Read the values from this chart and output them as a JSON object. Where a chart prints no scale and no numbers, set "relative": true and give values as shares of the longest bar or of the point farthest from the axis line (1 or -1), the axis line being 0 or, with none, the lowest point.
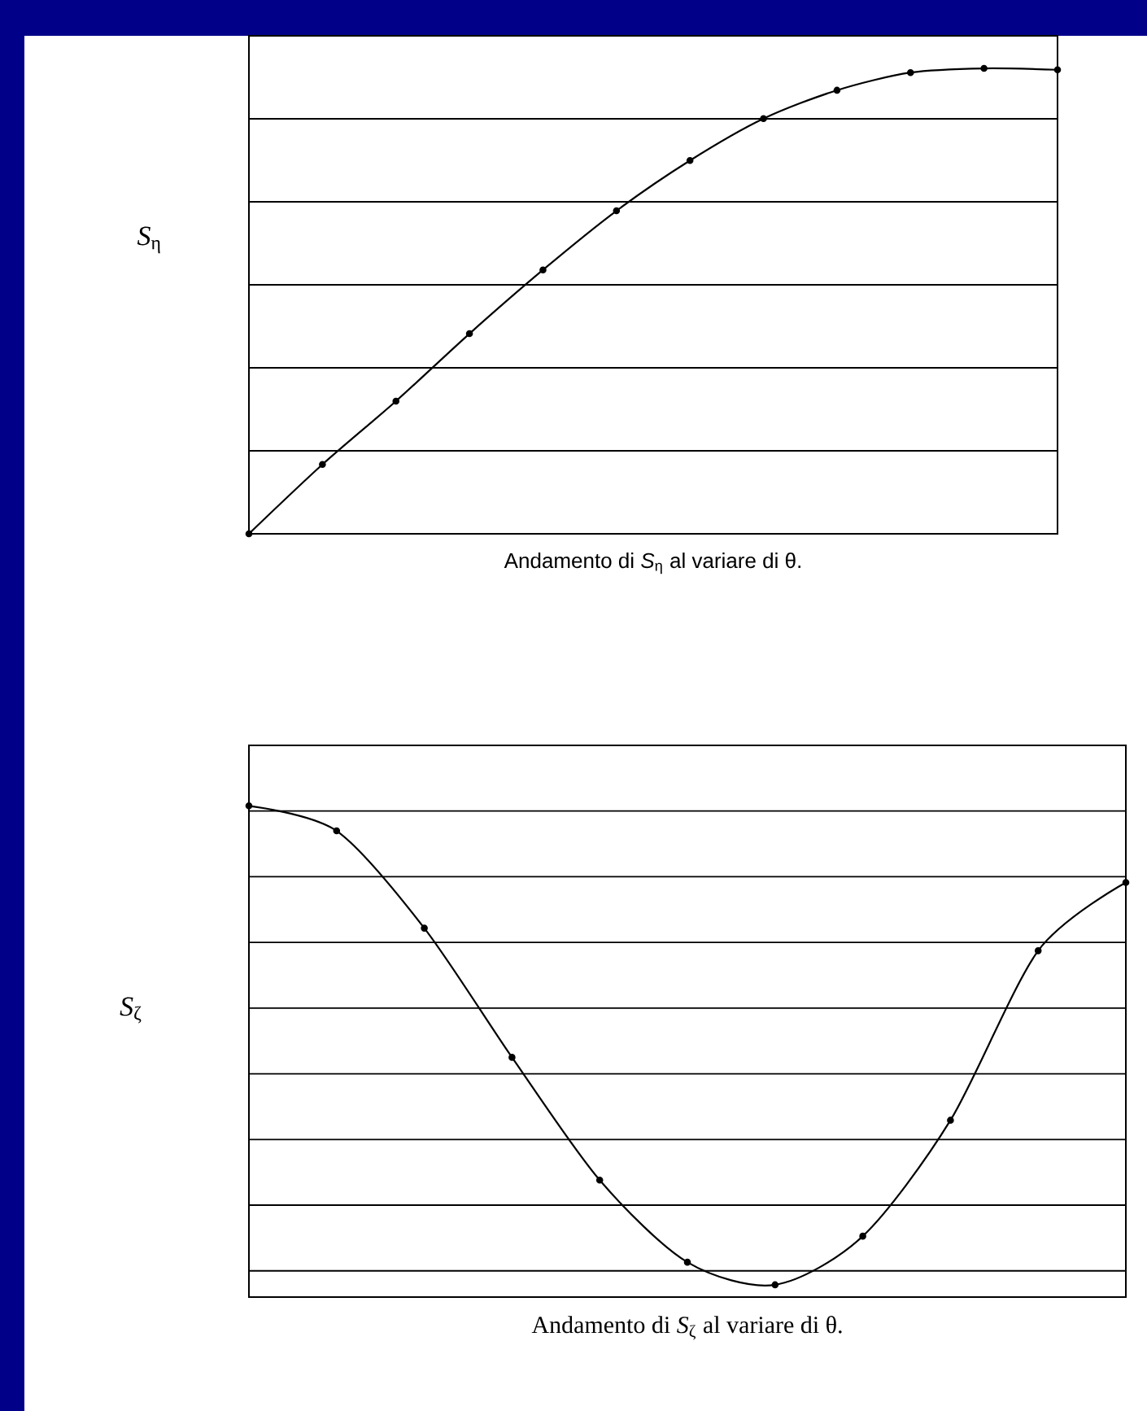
{
  "chart_data": [
    {
      "type": "line",
      "title": "Andamento di *S*$_{η}$ al variare di θ.",
      "ylabel": "*S*$_{η}$",
      "categories": [
        null,
        null,
        null,
        null,
        null,
        null,
        null,
        null,
        null,
        null,
        null,
        null
      ],
      "values": [
        0,
        0.149,
        0.285,
        0.43,
        0.567,
        0.694,
        0.802,
        0.892,
        0.953,
        0.991,
        1,
        0.997
      ],
      "color": "#000000",
      "relative": true,
      "grid": "y",
      "marker": "circle",
      "line_style": "solid"
    },
    {
      "type": "line",
      "title": "Andamento di *S*$_{ζ}$ al variare di θ.",
      "ylabel": "*S*$_{ζ}$",
      "categories": [
        null,
        null,
        null,
        null,
        null,
        null,
        null,
        null,
        null,
        null,
        null
      ],
      "values": [
        1,
        0.949,
        0.751,
        0.488,
        0.238,
        0.071,
        0.025,
        0.124,
        0.36,
        0.705,
        0.844
      ],
      "color": "#000000",
      "relative": true,
      "grid": "y",
      "marker": "circle",
      "line_style": "solid"
    }
  ]
}
